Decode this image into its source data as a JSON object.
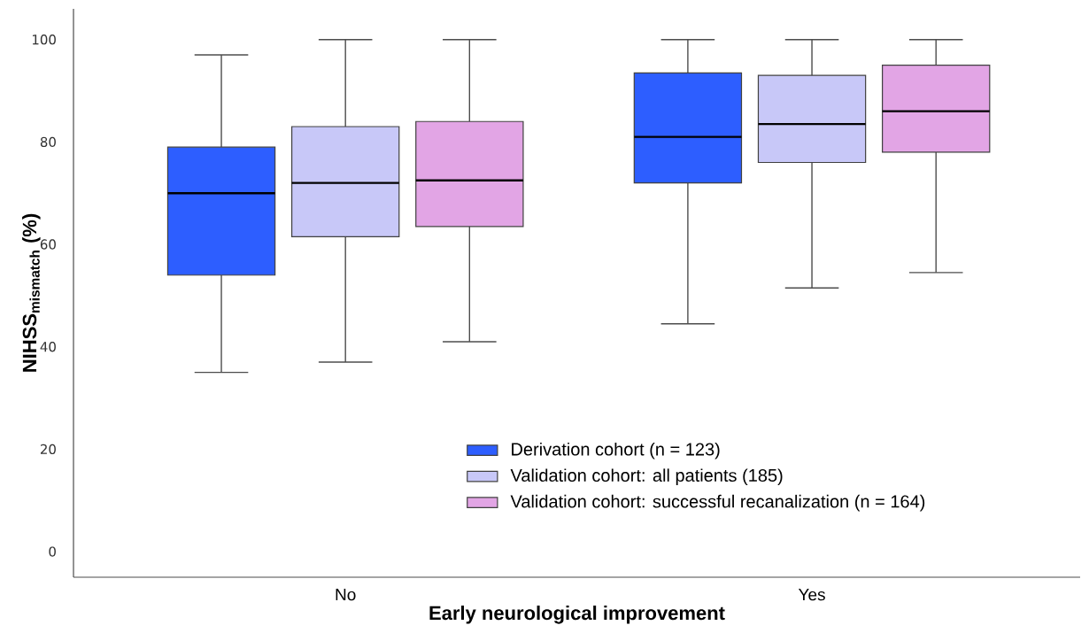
{
  "chart_data": {
    "type": "box",
    "xlabel": "Early neurological improvement",
    "ylabel": "NIHSS$_{mismatch}$ (%)",
    "categories": [
      "No",
      "Yes"
    ],
    "ylim": [
      -5,
      106
    ],
    "yticks": [
      0,
      20,
      40,
      60,
      80,
      100
    ],
    "grid": false,
    "legend": "bottom",
    "series": [
      {
        "name": "Derivation cohort (n = 123)",
        "color": "#2d5eff",
        "boxes": [
          {
            "low": 35,
            "q1": 54,
            "median": 70,
            "q3": 79,
            "high": 97
          },
          {
            "low": 44.5,
            "q1": 72,
            "median": 81,
            "q3": 93.5,
            "high": 100
          }
        ]
      },
      {
        "name": "Validation cohort: all patients (185)",
        "color": "#c8c8f8",
        "boxes": [
          {
            "low": 37,
            "q1": 61.5,
            "median": 72,
            "q3": 83,
            "high": 100
          },
          {
            "low": 51.5,
            "q1": 76,
            "median": 83.5,
            "q3": 93,
            "high": 100
          }
        ]
      },
      {
        "name": "Validation cohort: successful recanalization (n = 164)",
        "color": "#e2a5e5",
        "boxes": [
          {
            "low": 41,
            "q1": 63.5,
            "median": 72.5,
            "q3": 84,
            "high": 100
          },
          {
            "low": 54.5,
            "q1": 78,
            "median": 86,
            "q3": 95,
            "high": 100
          }
        ]
      }
    ]
  }
}
